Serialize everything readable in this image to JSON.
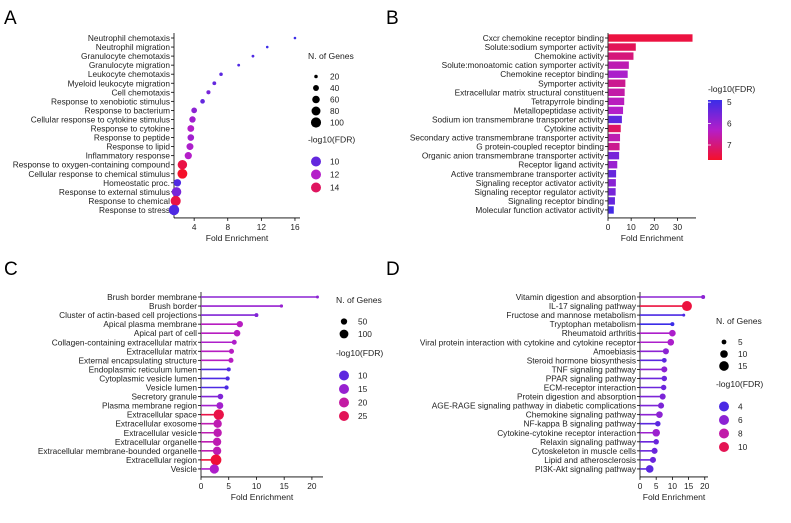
{
  "colors": {
    "low": "#3b2ce8",
    "mid": "#b41ec9",
    "high": "#f5102a"
  },
  "legend_text": {
    "genes_title": "N. of Genes",
    "fdr_title": "-log10(FDR)"
  },
  "chart_data": [
    {
      "panel": "A",
      "type": "scatter",
      "xlabel": "Fold Enrichment",
      "ylabel": "",
      "xlim": [
        1.6,
        16.6
      ],
      "xticks": [
        4,
        8,
        12,
        16
      ],
      "categories": [
        "Neutrophil chemotaxis",
        "Neutrophil migration",
        "Granulocyte chemotaxis",
        "Granulocyte migration",
        "Leukocyte chemotaxis",
        "Myeloid leukocyte migration",
        "Cell chemotaxis",
        "Response to xenobiotic stimulus",
        "Response to bacterium",
        "Cellular response to cytokine stimulus",
        "Response to cytokine",
        "Response to peptide",
        "Response to lipid",
        "Inflammatory response",
        "Response to oxygen-containing compound",
        "Cellular response to chemical stimulus",
        "Homeostatic proc.",
        "Response to external stimulus",
        "Response to chemical",
        "Response to stress"
      ],
      "fold_enrichment": [
        16.0,
        12.7,
        11.0,
        9.3,
        7.2,
        6.4,
        5.7,
        5.0,
        4.0,
        3.8,
        3.6,
        3.6,
        3.5,
        3.3,
        2.6,
        2.6,
        2.0,
        1.9,
        1.8,
        1.6
      ],
      "n_genes": [
        15,
        15,
        16,
        16,
        20,
        22,
        24,
        28,
        38,
        45,
        50,
        48,
        52,
        55,
        88,
        95,
        58,
        90,
        100,
        105
      ],
      "neg_log10_fdr": [
        9,
        9,
        9.5,
        9.5,
        9.8,
        10,
        10.5,
        10,
        11,
        11.5,
        12,
        11.5,
        11.8,
        12,
        14.5,
        15,
        9.5,
        10.5,
        14.5,
        9.5
      ],
      "size_legend": {
        "title": "N. of Genes",
        "values": [
          20,
          40,
          60,
          80,
          100
        ]
      },
      "color_legend": {
        "title": "-log10(FDR)",
        "values": [
          10,
          12,
          14
        ],
        "range": [
          9,
          15
        ]
      }
    },
    {
      "panel": "B",
      "type": "bar",
      "xlabel": "Fold Enrichment",
      "ylabel": "",
      "xlim": [
        0,
        38
      ],
      "xticks": [
        0,
        10,
        20,
        30
      ],
      "categories": [
        "Cxcr chemokine receptor binding",
        "Solute:sodium symporter activity",
        "Chemokine activity",
        "Solute:monoatomic cation symporter activity",
        "Chemokine receptor binding",
        "Symporter activity",
        "Extracellular matrix structural constituent",
        "Tetrapyrrole binding",
        "Metallopeptidase activity",
        "Sodium ion transmembrane transporter activity",
        "Cytokine activity",
        "Secondary active transmembrane transporter activity",
        "G protein-coupled receptor binding",
        "Organic anion transmembrane transporter activity",
        "Receptor ligand activity",
        "Active transmembrane transporter activity",
        "Signaling receptor activator activity",
        "Signaling receptor regulator activity",
        "Signaling receptor binding",
        "Molecular function activator activity"
      ],
      "fold_enrichment": [
        36.5,
        12.0,
        11.0,
        9.0,
        8.5,
        7.5,
        7.2,
        7.0,
        6.5,
        6.0,
        5.5,
        5.2,
        5.0,
        4.8,
        4.0,
        3.5,
        3.4,
        3.3,
        3.0,
        2.5
      ],
      "neg_log10_fdr": [
        7.5,
        7.3,
        7.0,
        6.5,
        6.2,
        6.8,
        6.6,
        6.4,
        6.3,
        5.3,
        7.2,
        6.5,
        6.8,
        5.6,
        6.0,
        5.4,
        5.8,
        5.6,
        5.4,
        5.0
      ],
      "color_legend": {
        "title": "-log10(FDR)",
        "values": [
          5,
          6,
          7
        ],
        "range": [
          4.9,
          7.7
        ]
      }
    },
    {
      "panel": "C",
      "type": "scatter",
      "xlabel": "Fold Enrichment",
      "ylabel": "",
      "xlim": [
        0,
        22
      ],
      "xticks": [
        0,
        5,
        10,
        15,
        20
      ],
      "categories": [
        "Brush border membrane",
        "Brush border",
        "Cluster of actin-based cell projections",
        "Apical plasma membrane",
        "Apical part of cell",
        "Collagen-containing extracellular matrix",
        "Extracellular matrix",
        "External encapsulating structure",
        "Endoplasmic reticulum lumen",
        "Cytoplasmic vesicle lumen",
        "Vesicle lumen",
        "Secretory granule",
        "Plasma membrane region",
        "Extracellular space",
        "Extracellular exosome",
        "Extracellular vesicle",
        "Extracellular organelle",
        "Extracellular membrane-bounded organelle",
        "Extracellular region",
        "Vesicle"
      ],
      "fold_enrichment": [
        21.0,
        14.5,
        10.0,
        7.0,
        6.5,
        6.0,
        5.5,
        5.4,
        5.0,
        4.8,
        4.6,
        3.5,
        3.4,
        3.2,
        3.0,
        3.0,
        2.9,
        2.9,
        2.7,
        2.4
      ],
      "n_genes": [
        10,
        12,
        18,
        50,
        55,
        30,
        32,
        32,
        20,
        22,
        22,
        40,
        60,
        140,
        90,
        90,
        90,
        90,
        150,
        110
      ],
      "neg_log10_fdr": [
        14,
        15,
        13,
        18,
        18,
        17,
        18,
        18,
        9,
        8.5,
        8.5,
        13,
        16,
        26,
        19,
        19,
        19,
        19,
        27,
        17
      ],
      "size_legend": {
        "title": "N. of Genes",
        "values": [
          50,
          100
        ]
      },
      "color_legend": {
        "title": "-log10(FDR)",
        "values": [
          10,
          15,
          20,
          25
        ],
        "range": [
          7,
          28
        ]
      }
    },
    {
      "panel": "D",
      "type": "scatter",
      "xlabel": "Fold Enrichment",
      "ylabel": "",
      "xlim": [
        0,
        21
      ],
      "xticks": [
        0,
        5,
        10,
        15,
        20
      ],
      "categories": [
        "Vitamin digestion and absorption",
        "IL-17 signaling pathway",
        "Fructose and mannose metabolism",
        "Tryptophan metabolism",
        "Rheumatoid arthritis",
        "Viral protein interaction with cytokine and cytokine receptor",
        "Amoebiasis",
        "Steroid hormone biosynthesis",
        "TNF signaling pathway",
        "PPAR signaling pathway",
        "ECM-receptor interaction",
        "Protein digestion and absorption",
        "AGE-RAGE signaling pathway in diabetic complications",
        "Chemokine signaling pathway",
        "NF-kappa B signaling pathway",
        "Cytokine-cytokine receptor interaction",
        "Relaxin signaling pathway",
        "Cytoskeleton in muscle cells",
        "Lipid and atherosclerosis",
        "PI3K-Akt signaling pathway"
      ],
      "fold_enrichment": [
        19.5,
        14.5,
        13.5,
        10.0,
        10.0,
        9.5,
        8.0,
        7.5,
        7.5,
        7.5,
        7.3,
        7.0,
        6.5,
        6.0,
        5.5,
        5.0,
        5.0,
        4.5,
        4.0,
        3.0
      ],
      "n_genes": [
        4,
        16,
        3,
        4,
        8,
        8,
        7,
        5,
        7,
        6,
        6,
        7,
        7,
        8,
        6,
        10,
        6,
        7,
        7,
        10
      ],
      "neg_log10_fdr": [
        6,
        10.5,
        4,
        3.5,
        7,
        7,
        6,
        4.5,
        6,
        5,
        5,
        5.5,
        5.5,
        6,
        4.5,
        6.5,
        5,
        5,
        5,
        4.5
      ],
      "size_legend": {
        "title": "N. of Genes",
        "values": [
          5,
          10,
          15
        ]
      },
      "color_legend": {
        "title": "-log10(FDR)",
        "values": [
          4,
          6,
          8,
          10
        ],
        "range": [
          3.5,
          11
        ]
      }
    }
  ]
}
